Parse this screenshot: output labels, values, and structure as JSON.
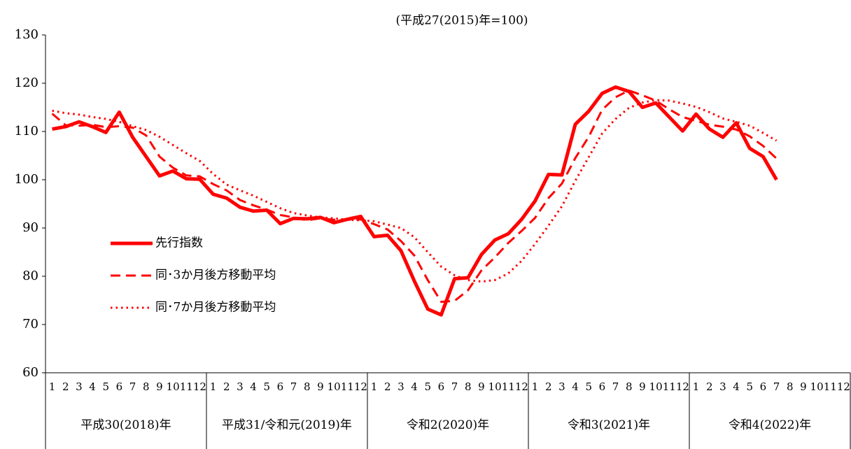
{
  "chart_data": {
    "type": "line",
    "subtitle": "(平成27(2015)年=100)",
    "categories": [
      "1",
      "2",
      "3",
      "4",
      "5",
      "6",
      "7",
      "8",
      "9",
      "10",
      "11",
      "12",
      "1",
      "2",
      "3",
      "4",
      "5",
      "6",
      "7",
      "8",
      "9",
      "10",
      "11",
      "12",
      "1",
      "2",
      "3",
      "4",
      "5",
      "6",
      "7",
      "8",
      "9",
      "10",
      "11",
      "12",
      "1",
      "2",
      "3",
      "4",
      "5",
      "6",
      "7",
      "8",
      "9",
      "10",
      "11",
      "12",
      "1",
      "2",
      "3",
      "4",
      "5",
      "6",
      "7",
      "8",
      "9",
      "10",
      "11",
      "12"
    ],
    "category_groups": [
      "平成30(2018)年",
      "平成31/令和元(2019)年",
      "令和2(2020)年",
      "令和3(2021)年",
      "令和4(2022)年"
    ],
    "ylim": [
      60,
      130
    ],
    "yticks": [
      60,
      70,
      80,
      90,
      100,
      110,
      120,
      130
    ],
    "series": [
      {
        "name": "先行指数",
        "color": "#ff0000",
        "style": "solid",
        "values": [
          110.5,
          111,
          112,
          111,
          109.8,
          114,
          108.8,
          104.8,
          100.8,
          101.8,
          100.2,
          100.1,
          97,
          96.2,
          94.3,
          93.5,
          93.7,
          90.9,
          92,
          91.9,
          92.2,
          91.1,
          91.8,
          92.4,
          88.2,
          88.5,
          85.3,
          79,
          73.2,
          72,
          79.5,
          79.7,
          84.5,
          87.5,
          88.8,
          91.8,
          95.6,
          101.1,
          101,
          111.5,
          114.2,
          117.9,
          119.2,
          118.3,
          115,
          115.9,
          113,
          110.1,
          113.6,
          110.5,
          108.8,
          111.8,
          106.5,
          104.8,
          100,
          null,
          null,
          null,
          null,
          null
        ]
      },
      {
        "name": "同･3か月後方移動平均",
        "color": "#ff0000",
        "style": "dashed",
        "values": [
          113.7,
          111.3,
          111.2,
          111.4,
          110.9,
          111.1,
          110.8,
          109.2,
          104.8,
          102.5,
          100.9,
          100.7,
          99.1,
          97.8,
          95.8,
          94.7,
          93.8,
          92.7,
          92.2,
          91.6,
          92,
          91.7,
          91.7,
          91.8,
          90.8,
          89.7,
          87.3,
          84.3,
          79.2,
          74.7,
          74.9,
          77.1,
          81.2,
          83.9,
          86.9,
          89.4,
          92.1,
          96.2,
          99.2,
          104.5,
          108.9,
          114.5,
          117.1,
          118.5,
          117.5,
          116.4,
          114.6,
          113,
          112.2,
          111.4,
          111,
          110.4,
          109,
          107,
          104.4,
          null,
          null,
          null,
          null,
          null
        ]
      },
      {
        "name": "同･7か月後方移動平均",
        "color": "#ff0000",
        "style": "dotted",
        "values": [
          114.3,
          113.8,
          113.5,
          113,
          112.6,
          112,
          111.1,
          110.3,
          108.9,
          107.2,
          105.5,
          103.9,
          101.2,
          99,
          97.8,
          96.7,
          95.4,
          94.1,
          93.1,
          92.6,
          92.2,
          92,
          91.7,
          91.6,
          91.4,
          90.7,
          90,
          88.1,
          85,
          82,
          80.2,
          79.2,
          78.9,
          79.2,
          80.6,
          83.2,
          86.7,
          90.5,
          94.5,
          99.8,
          104.7,
          109.6,
          112.6,
          114.9,
          116,
          116.5,
          116.4,
          115.8,
          115.1,
          114,
          112.7,
          112,
          111.2,
          109.7,
          108.1,
          null,
          null,
          null,
          null,
          null
        ]
      }
    ]
  }
}
